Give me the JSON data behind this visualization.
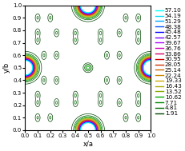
{
  "contour_levels": [
    1.91,
    4.81,
    7.71,
    10.62,
    13.52,
    16.43,
    19.33,
    22.24,
    25.14,
    28.05,
    30.95,
    33.86,
    36.76,
    39.67,
    42.57,
    45.48,
    48.38,
    51.29,
    54.19,
    57.1
  ],
  "contour_colors": [
    "#004400",
    "#006600",
    "#008800",
    "#00aa00",
    "#88aa00",
    "#aaaa00",
    "#ccaa00",
    "#cc8800",
    "#cc6600",
    "#cc3300",
    "#cc0000",
    "#cc0066",
    "#cc00bb",
    "#aa00ff",
    "#7700ff",
    "#0000ff",
    "#0055ff",
    "#00aaff",
    "#00ddff",
    "#00ffff"
  ],
  "xlabel": "x/a",
  "ylabel": "y/b",
  "xlim": [
    0,
    1
  ],
  "ylim": [
    0,
    1
  ],
  "figsize": [
    2.31,
    1.89
  ],
  "dpi": 100,
  "background_color": "#ffffff",
  "legend_fontsize": 5.2
}
